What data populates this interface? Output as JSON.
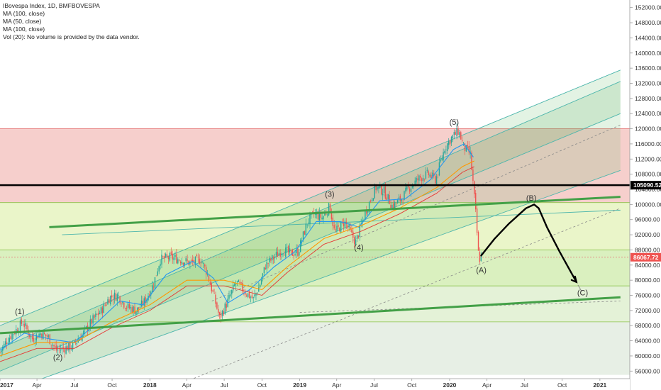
{
  "legend": {
    "title": "IBovespa Index, 1D, BMFBOVESPA",
    "ma1": "MA (100, close)",
    "ma2": "MA (50, close)",
    "ma3": "MA (100, close)",
    "vol": "Vol (20): No volume is provided by the data vendor."
  },
  "colors": {
    "up": "#26a69a",
    "down": "#ef5350",
    "ma_blue": "#2196f3",
    "ma_orange": "#ff9800",
    "ma_red": "#e53935",
    "zone_red": "#f4c7c3",
    "zone_green": "#d9efc2",
    "trend_green": "#43a047",
    "price_line": "#000000",
    "badge_red": "#ef5350"
  },
  "chart_data": {
    "type": "candlestick",
    "symbol": "IBovespa Index",
    "interval": "1D",
    "exchange": "BMFBOVESPA",
    "y_axis": {
      "range": [
        54000,
        154000
      ],
      "ticks": [
        "152000.00",
        "148000.00",
        "144000.00",
        "140000.00",
        "136000.00",
        "132000.00",
        "128000.00",
        "124000.00",
        "120000.00",
        "116000.00",
        "112000.00",
        "108000.00",
        "104000.00",
        "100000.00",
        "96000.00",
        "92000.00",
        "88000.00",
        "84000.00",
        "80000.00",
        "76000.00",
        "72000.00",
        "68000.00",
        "64000.00",
        "60000.00",
        "56000.00"
      ]
    },
    "x_axis": {
      "range": [
        "2017-01-01",
        "2021-03-01"
      ],
      "ticks": [
        "2017",
        "Apr",
        "Jul",
        "Oct",
        "2018",
        "Apr",
        "Jul",
        "Oct",
        "2019",
        "Apr",
        "Jul",
        "Oct",
        "2020",
        "Apr",
        "Jul",
        "Oct",
        "2021"
      ]
    },
    "close_path": [
      [
        "2017-01-01",
        61000
      ],
      [
        "2017-01-20",
        64500
      ],
      [
        "2017-02-15",
        67500
      ],
      [
        "2017-02-25",
        69000
      ],
      [
        "2017-03-20",
        64500
      ],
      [
        "2017-04-10",
        66000
      ],
      [
        "2017-04-28",
        65000
      ],
      [
        "2017-05-18",
        61500
      ],
      [
        "2017-06-05",
        62000
      ],
      [
        "2017-06-25",
        62500
      ],
      [
        "2017-07-20",
        65500
      ],
      [
        "2017-08-15",
        69500
      ],
      [
        "2017-09-05",
        72000
      ],
      [
        "2017-09-25",
        75500
      ],
      [
        "2017-10-15",
        76000
      ],
      [
        "2017-11-05",
        73000
      ],
      [
        "2017-11-30",
        72000
      ],
      [
        "2017-12-20",
        74500
      ],
      [
        "2018-01-10",
        79000
      ],
      [
        "2018-01-26",
        85500
      ],
      [
        "2018-02-20",
        86000
      ],
      [
        "2018-03-15",
        85500
      ],
      [
        "2018-04-10",
        84500
      ],
      [
        "2018-05-05",
        85500
      ],
      [
        "2018-05-20",
        82000
      ],
      [
        "2018-06-05",
        76000
      ],
      [
        "2018-06-20",
        70000
      ],
      [
        "2018-07-10",
        74500
      ],
      [
        "2018-07-30",
        79500
      ],
      [
        "2018-08-20",
        77000
      ],
      [
        "2018-09-10",
        75000
      ],
      [
        "2018-09-25",
        78500
      ],
      [
        "2018-10-10",
        84000
      ],
      [
        "2018-10-30",
        86000
      ],
      [
        "2018-11-20",
        88000
      ],
      [
        "2018-12-10",
        87000
      ],
      [
        "2018-12-28",
        87500
      ],
      [
        "2019-01-20",
        95500
      ],
      [
        "2019-02-05",
        97500
      ],
      [
        "2019-02-25",
        96500
      ],
      [
        "2019-03-15",
        99500
      ],
      [
        "2019-03-27",
        92500
      ],
      [
        "2019-04-20",
        95500
      ],
      [
        "2019-05-17",
        90000
      ],
      [
        "2019-06-10",
        98000
      ],
      [
        "2019-07-05",
        104500
      ],
      [
        "2019-07-25",
        103500
      ],
      [
        "2019-08-15",
        99500
      ],
      [
        "2019-09-05",
        101500
      ],
      [
        "2019-09-25",
        104500
      ],
      [
        "2019-10-20",
        107000
      ],
      [
        "2019-11-10",
        108000
      ],
      [
        "2019-11-28",
        106500
      ],
      [
        "2019-12-20",
        115000
      ],
      [
        "2020-01-05",
        117500
      ],
      [
        "2020-01-23",
        119500
      ],
      [
        "2020-02-05",
        115000
      ],
      [
        "2020-02-20",
        113500
      ],
      [
        "2020-02-28",
        104500
      ],
      [
        "2020-03-05",
        97000
      ],
      [
        "2020-03-12",
        85500
      ],
      [
        "2020-03-18",
        86067
      ]
    ],
    "ma_fast_path": [
      [
        "2017-01-01",
        61500
      ],
      [
        "2017-03-01",
        66000
      ],
      [
        "2017-05-01",
        64500
      ],
      [
        "2017-07-01",
        63500
      ],
      [
        "2017-09-01",
        69500
      ],
      [
        "2017-10-20",
        74500
      ],
      [
        "2017-12-15",
        73500
      ],
      [
        "2018-02-10",
        81500
      ],
      [
        "2018-04-15",
        85000
      ],
      [
        "2018-06-05",
        80500
      ],
      [
        "2018-07-10",
        74000
      ],
      [
        "2018-09-01",
        77500
      ],
      [
        "2018-10-30",
        83500
      ],
      [
        "2018-12-20",
        87500
      ],
      [
        "2019-02-10",
        95500
      ],
      [
        "2019-04-10",
        95500
      ],
      [
        "2019-05-25",
        94000
      ],
      [
        "2019-07-15",
        101000
      ],
      [
        "2019-09-15",
        101500
      ],
      [
        "2019-11-15",
        106500
      ],
      [
        "2020-01-10",
        114500
      ],
      [
        "2020-02-05",
        116000
      ],
      [
        "2020-02-28",
        112500
      ]
    ],
    "ma_slow_path": [
      [
        "2017-01-01",
        60000
      ],
      [
        "2017-04-01",
        63500
      ],
      [
        "2017-07-01",
        63500
      ],
      [
        "2017-10-01",
        69000
      ],
      [
        "2018-01-01",
        73500
      ],
      [
        "2018-04-01",
        80000
      ],
      [
        "2018-07-01",
        80000
      ],
      [
        "2018-10-01",
        77500
      ],
      [
        "2018-12-01",
        83500
      ],
      [
        "2019-03-01",
        91000
      ],
      [
        "2019-06-01",
        94500
      ],
      [
        "2019-09-01",
        99000
      ],
      [
        "2019-12-01",
        104500
      ],
      [
        "2020-02-01",
        110000
      ],
      [
        "2020-03-01",
        111500
      ]
    ],
    "projection_path": [
      [
        "2020-03-18",
        86500
      ],
      [
        "2020-04-20",
        91000
      ],
      [
        "2020-05-25",
        95000
      ],
      [
        "2020-07-05",
        99000
      ],
      [
        "2020-07-25",
        100000
      ],
      [
        "2020-08-05",
        99000
      ],
      [
        "2020-08-25",
        94000
      ],
      [
        "2020-09-25",
        87500
      ],
      [
        "2020-11-05",
        79500
      ]
    ],
    "horizontal_levels": {
      "current_price": 105090.52,
      "target_price": 86067.72,
      "red_zone": [
        100500,
        120000
      ],
      "green_zone_1": [
        88000,
        100500
      ],
      "green_zone_2": [
        78500,
        88000
      ],
      "green_zone_3": [
        69000,
        78500
      ],
      "gray_zone": [
        55000,
        69000
      ]
    },
    "trendlines": {
      "upper_thick": [
        [
          "2017-05-01",
          94000
        ],
        [
          "2021-02-20",
          102000
        ]
      ],
      "lower_thick": [
        [
          "2017-01-01",
          66000
        ],
        [
          "2021-02-20",
          75500
        ]
      ],
      "channel_top": [
        [
          "2017-01-01",
          68000
        ],
        [
          "2021-02-20",
          135500
        ]
      ],
      "channel_mid_a": [
        [
          "2017-01-01",
          62000
        ],
        [
          "2021-02-20",
          132500
        ]
      ],
      "channel_mid_b": [
        [
          "2017-01-01",
          56000
        ],
        [
          "2021-02-20",
          124000
        ]
      ],
      "channel_bottom": [
        [
          "2017-01-01",
          50000
        ],
        [
          "2021-02-20",
          109000
        ]
      ],
      "dashed_upper": [
        [
          "2018-06-01",
          74500
        ],
        [
          "2021-02-20",
          121000
        ]
      ],
      "dashed_lower": [
        [
          "2018-03-01",
          52000
        ],
        [
          "2021-02-20",
          99000
        ]
      ],
      "wedge_thin": [
        [
          "2017-06-01",
          92000
        ],
        [
          "2021-02-20",
          98500
        ]
      ],
      "bottom_dashed": [
        [
          "2019-01-01",
          71500
        ],
        [
          "2021-02-20",
          74500
        ]
      ]
    },
    "wave_labels": [
      {
        "text": "(1)",
        "date": "2017-02-18",
        "price": 71000
      },
      {
        "text": "(2)",
        "date": "2017-05-22",
        "price": 59000
      },
      {
        "text": "(3)",
        "date": "2019-03-15",
        "price": 102000
      },
      {
        "text": "(4)",
        "date": "2019-05-25",
        "price": 88000
      },
      {
        "text": "(5)",
        "date": "2020-01-12",
        "price": 121000
      },
      {
        "text": "(A)",
        "date": "2020-03-18",
        "price": 82000
      },
      {
        "text": "(B)",
        "date": "2020-07-18",
        "price": 101000
      },
      {
        "text": "(C)",
        "date": "2020-11-20",
        "price": 76000
      }
    ],
    "price_badges": [
      {
        "label": "105090.52",
        "price": 105090.52,
        "color": "#000000"
      },
      {
        "label": "86067.72",
        "price": 86067.72,
        "color": "#ef5350"
      }
    ]
  }
}
